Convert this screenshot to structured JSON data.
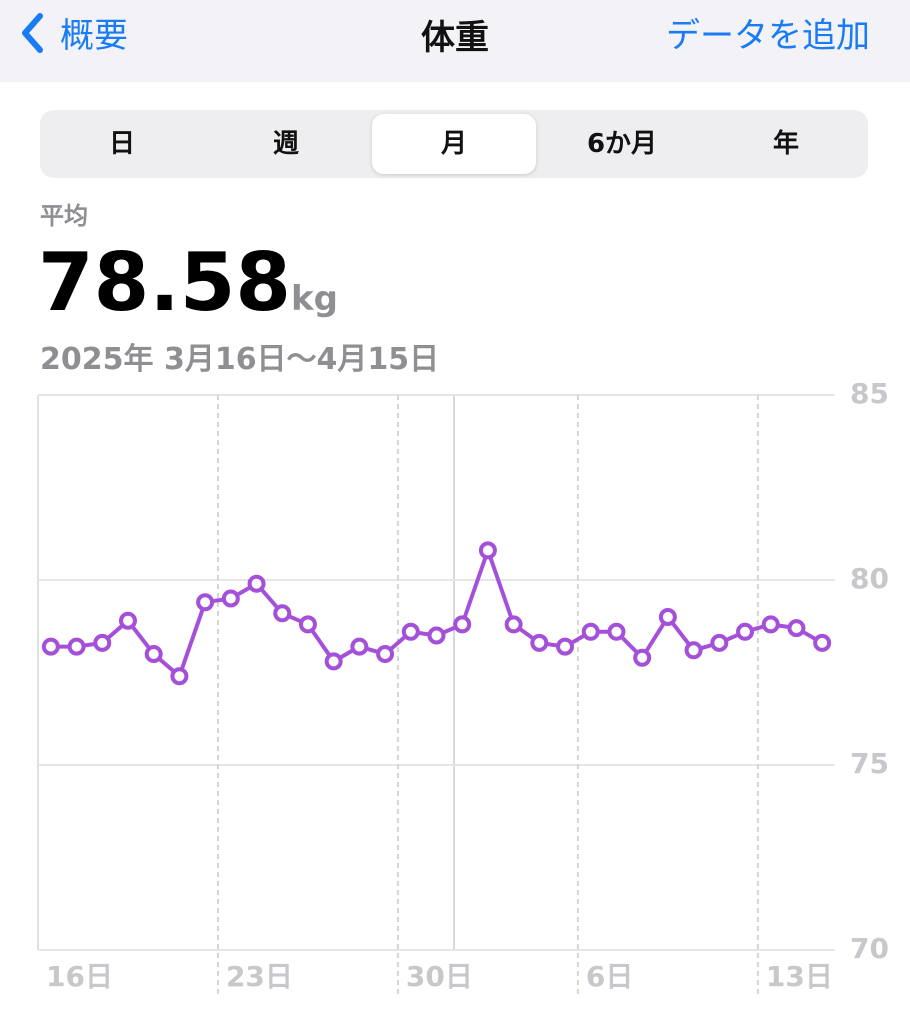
{
  "header": {
    "back": "概要",
    "title": "体重",
    "action": "データを追加"
  },
  "segments": [
    "日",
    "週",
    "月",
    "6か月",
    "年"
  ],
  "summary": {
    "label": "平均",
    "value": "78.58",
    "unit": "kg",
    "range": "2025年 3月16日〜4月15日"
  },
  "chart_data": {
    "type": "line",
    "categories": [
      "16日",
      null,
      null,
      null,
      null,
      null,
      null,
      "23日",
      null,
      null,
      null,
      null,
      null,
      null,
      "30日",
      null,
      null,
      null,
      null,
      null,
      null,
      "6日",
      null,
      null,
      null,
      null,
      null,
      null,
      "13日",
      null,
      null
    ],
    "values": [
      78.2,
      78.2,
      78.3,
      78.9,
      78.0,
      77.4,
      79.4,
      79.5,
      79.9,
      79.1,
      78.8,
      77.8,
      78.2,
      78.0,
      78.6,
      78.5,
      78.8,
      80.8,
      78.8,
      78.3,
      78.2,
      78.6,
      78.6,
      77.9,
      79.0,
      78.1,
      78.3,
      78.6,
      78.8,
      78.7,
      78.3
    ],
    "color": "#a550d8",
    "ylim": [
      70,
      85
    ],
    "yticks": [
      70,
      75,
      80,
      85
    ],
    "grid": true
  }
}
